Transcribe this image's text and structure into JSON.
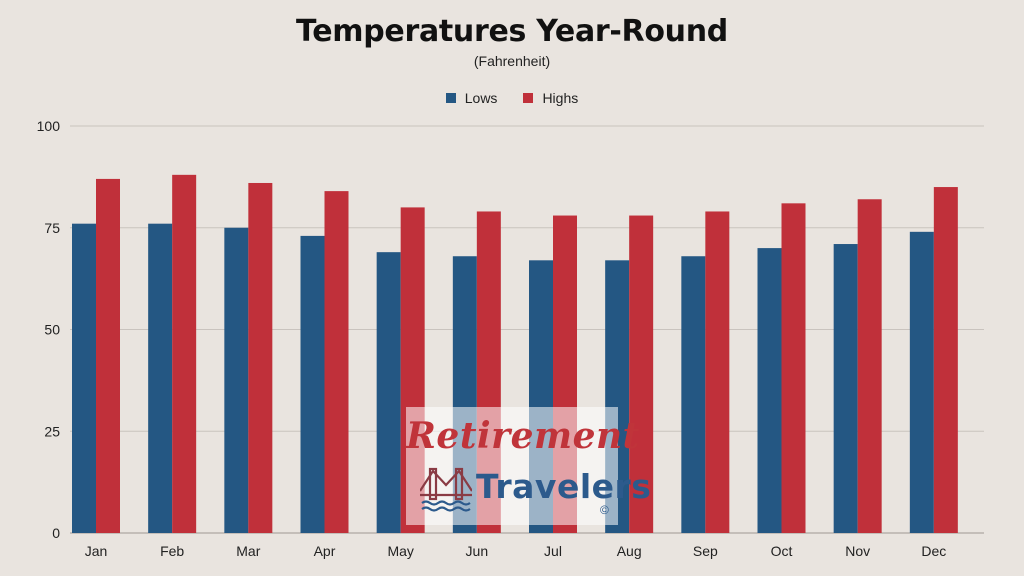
{
  "chart_data": {
    "type": "bar",
    "title": "Temperatures Year-Round",
    "subtitle": "(Fahrenheit)",
    "xlabel": "",
    "ylabel": "",
    "ylim": [
      0,
      100
    ],
    "yticks": [
      "0",
      "25",
      "50",
      "75",
      "100"
    ],
    "grid": true,
    "legend_position": "top-center",
    "categories": [
      "Jan",
      "Feb",
      "Mar",
      "Apr",
      "May",
      "Jun",
      "Jul",
      "Aug",
      "Sep",
      "Oct",
      "Nov",
      "Dec"
    ],
    "series": [
      {
        "name": "Lows",
        "color": "#245783",
        "values": [
          76,
          76,
          75,
          73,
          69,
          68,
          67,
          67,
          68,
          70,
          71,
          74
        ]
      },
      {
        "name": "Highs",
        "color": "#c0303a",
        "values": [
          87,
          88,
          86,
          84,
          80,
          79,
          78,
          78,
          79,
          81,
          82,
          85
        ]
      }
    ]
  },
  "watermark": {
    "line1": "Retirement",
    "line2": "Travelers",
    "mark": "©",
    "icon": "bridge-icon"
  }
}
